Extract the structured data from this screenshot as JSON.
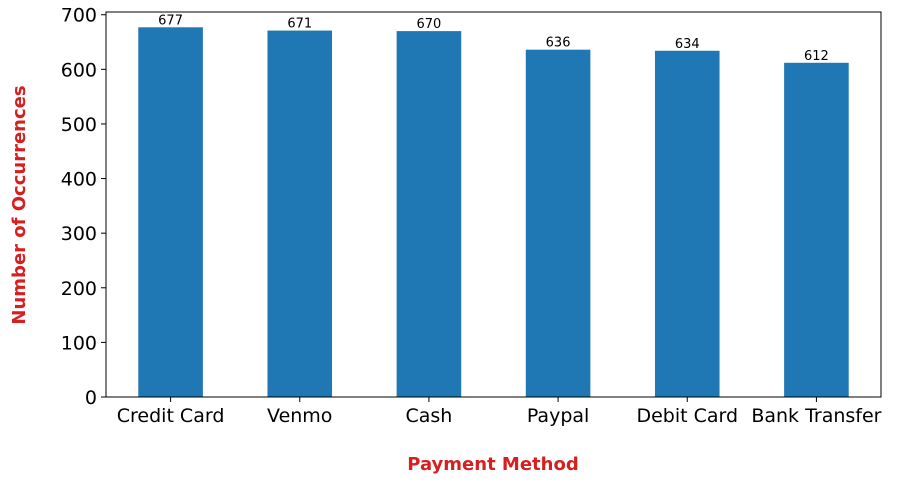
{
  "chart_data": {
    "type": "bar",
    "categories": [
      "Credit Card",
      "Venmo",
      "Cash",
      "Paypal",
      "Debit Card",
      "Bank Transfer"
    ],
    "values": [
      677,
      671,
      670,
      636,
      634,
      612
    ],
    "data_labels": [
      "677",
      "671",
      "670",
      "636",
      "634",
      "612"
    ],
    "title": "",
    "xlabel": "Payment Method",
    "ylabel": "Number of Occurrences",
    "ylim": [
      0,
      705
    ],
    "yticks": [
      0,
      100,
      200,
      300,
      400,
      500,
      600,
      700
    ],
    "ytick_labels": [
      "0",
      "100",
      "200",
      "300",
      "400",
      "500",
      "600",
      "700"
    ],
    "grid": false,
    "colors": {
      "bar": "#1f77b4",
      "axis_title": "#d62020"
    }
  }
}
